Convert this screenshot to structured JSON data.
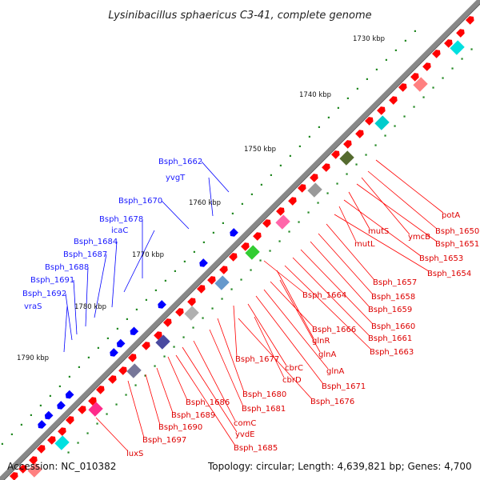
{
  "title": "Lysinibacillus sphaericus C3-41, complete genome",
  "accession": "Accession: NC_010382",
  "topology": "Topology: circular; Length: 4,639,821 bp; Genes: 4,700",
  "colors": {
    "forward_gene": "#ff0000",
    "reverse_gene": "#0000ff",
    "forward_label": "#dd0000",
    "reverse_label": "#1a1aff",
    "backbone": "#888888",
    "tick": "#228822"
  },
  "kbp_marks": [
    "1730 kbp",
    "1740 kbp",
    "1750 kbp",
    "1760 kbp",
    "1770 kbp",
    "1780 kbp",
    "1790 kbp"
  ],
  "reverse_labels": [
    "Bsph_1662",
    "yvgT",
    "Bsph_1670",
    "Bsph_1678",
    "icaC",
    "Bsph_1684",
    "Bsph_1687",
    "Bsph_1688",
    "Bsph_1691",
    "Bsph_1692",
    "vraS"
  ],
  "forward_labels": [
    "potA",
    "Bsph_1650",
    "ymcB",
    "Bsph_1651",
    "mutS",
    "Bsph_1653",
    "mutL",
    "Bsph_1654",
    "Bsph_1657",
    "Bsph_1658",
    "Bsph_1659",
    "Bsph_1664",
    "Bsph_1660",
    "Bsph_1661",
    "Bsph_1666",
    "glnR",
    "Bsph_1663",
    "glnA",
    "Bsph_1677",
    "cbrC",
    "glnA",
    "cbrD",
    "Bsph_1671",
    "Bsph_1680",
    "Bsph_1676",
    "Bsph_1681",
    "Bsph_1686",
    "Bsph_1689",
    "comC",
    "Bsph_1690",
    "yvdE",
    "Bsph_1697",
    "Bsph_1685",
    "luxS"
  ]
}
